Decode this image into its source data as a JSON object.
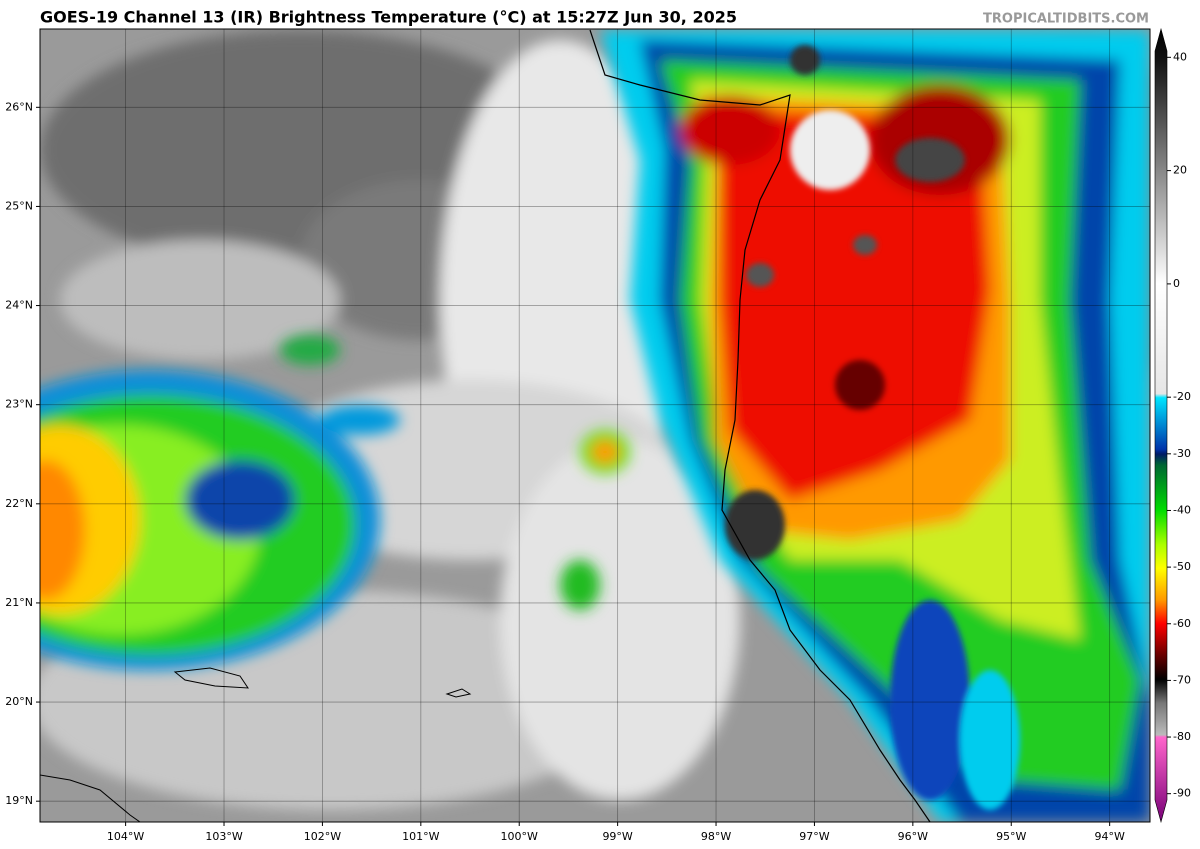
{
  "map": {
    "title": "GOES-19 Channel 13 (IR) Brightness Temperature (°C) at 15:27Z Jun 30, 2025",
    "credit": "TROPICALTIDBITS.COM",
    "lon_range": [
      -104.87,
      -93.59
    ],
    "lat_range": [
      18.79,
      26.79
    ],
    "lon_ticks": [
      {
        "value": -104,
        "label": "104°W"
      },
      {
        "value": -103,
        "label": "103°W"
      },
      {
        "value": -102,
        "label": "102°W"
      },
      {
        "value": -101,
        "label": "101°W"
      },
      {
        "value": -100,
        "label": "100°W"
      },
      {
        "value": -99,
        "label": "99°W"
      },
      {
        "value": -98,
        "label": "98°W"
      },
      {
        "value": -97,
        "label": "97°W"
      },
      {
        "value": -96,
        "label": "96°W"
      },
      {
        "value": -95,
        "label": "95°W"
      },
      {
        "value": -94,
        "label": "94°W"
      }
    ],
    "lat_ticks": [
      {
        "value": 19,
        "label": "19°N"
      },
      {
        "value": 20,
        "label": "20°N"
      },
      {
        "value": 21,
        "label": "21°N"
      },
      {
        "value": 22,
        "label": "22°N"
      },
      {
        "value": 23,
        "label": "23°N"
      },
      {
        "value": 24,
        "label": "24°N"
      },
      {
        "value": 25,
        "label": "25°N"
      },
      {
        "value": 26,
        "label": "26°N"
      }
    ],
    "colorbar": {
      "lim": [
        -95,
        45
      ],
      "ticks": [
        40,
        20,
        0,
        -20,
        -30,
        -40,
        -50,
        -60,
        -70,
        -80,
        -90
      ]
    }
  }
}
